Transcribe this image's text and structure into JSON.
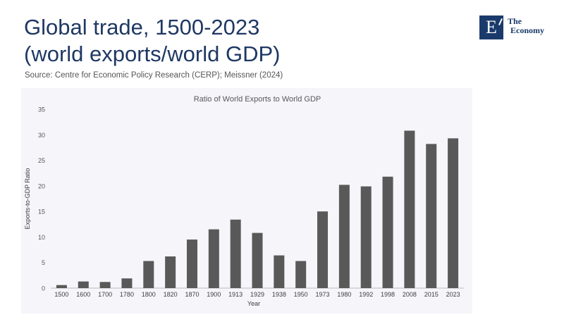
{
  "header": {
    "title_line1": "Global trade, 1500-2023",
    "title_line2": "(world exports/world GDP)",
    "source": "Source: Centre for Economic Policy Research (CERP); Meissner (2024)"
  },
  "logo": {
    "letter": "E",
    "line1": "The",
    "line2": "Economy",
    "color": "#1a3a6b"
  },
  "chart_data": {
    "type": "bar",
    "title": "Ratio of World Exports to World GDP",
    "xlabel": "Year",
    "ylabel": "Exports-to-GDP Ratio",
    "categories": [
      "1500",
      "1600",
      "1700",
      "1780",
      "1800",
      "1820",
      "1870",
      "1900",
      "1913",
      "1929",
      "1938",
      "1950",
      "1973",
      "1980",
      "1992",
      "1998",
      "2008",
      "2015",
      "2023"
    ],
    "values": [
      0.6,
      1.3,
      1.2,
      1.9,
      5.3,
      6.2,
      9.5,
      11.5,
      13.4,
      10.8,
      6.4,
      5.3,
      15.0,
      20.2,
      19.9,
      21.8,
      30.8,
      28.2,
      29.3
    ],
    "ylim": [
      0,
      35
    ],
    "yticks": [
      0,
      5,
      10,
      15,
      20,
      25,
      30,
      35
    ],
    "bar_color": "#595959",
    "grid": false,
    "legend": "none"
  }
}
